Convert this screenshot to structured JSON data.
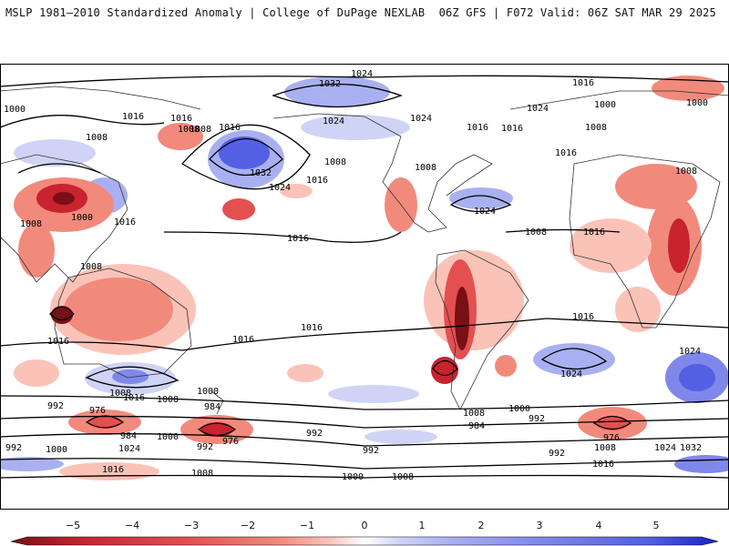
{
  "header": {
    "title_left": "MSLP 1981–2010 Standardized Anomaly | College of DuPage NEXLAB",
    "title_right": "06Z GFS | F072 Valid: 06Z SAT MAR 29 2025"
  },
  "colors": {
    "neg5": "#7a0f16",
    "neg4": "#c8232e",
    "neg3": "#e3504f",
    "neg2": "#f28a7c",
    "neg1": "#fbc3b8",
    "zero": "#ffffff",
    "pos1": "#cfd4f6",
    "pos2": "#a9b0f1",
    "pos3": "#7f88ea",
    "pos4": "#5460e3",
    "pos5": "#1a23c6",
    "land_outline": "#333333",
    "isobar": "#000000"
  },
  "colorbar": {
    "ticks": [
      "−5",
      "−4",
      "−3",
      "−2",
      "−1",
      "0",
      "1",
      "2",
      "3",
      "4",
      "5"
    ]
  },
  "isobar_labels": {
    "l1": "1024",
    "l2": "1032",
    "l3": "1016",
    "l4": "1000",
    "l5": "1016",
    "l6": "1008",
    "l7": "1016",
    "l8": "1024",
    "l9": "1008",
    "l10": "1016",
    "l11": "1024",
    "l12": "1016",
    "l13": "1000",
    "l14": "1024",
    "l15": "1016",
    "l16": "1008",
    "l17": "1000",
    "l18": "1016",
    "l19": "1032",
    "l20": "1024",
    "l21": "1008",
    "l22": "1016",
    "l23": "1008",
    "l24": "1008",
    "l25": "1008",
    "l26": "1024",
    "l27": "1008",
    "l28": "1016",
    "l29": "1016",
    "l30": "1008",
    "l31": "1016",
    "l32": "1008",
    "l33": "1016",
    "l34": "1016",
    "l35": "1024",
    "l36": "1024",
    "l37": "1016",
    "l38": "1016",
    "l39": "1016",
    "l40": "1008",
    "l41": "1000",
    "l42": "992",
    "l43": "976",
    "l44": "984",
    "l45": "992",
    "l46": "984",
    "l47": "1024",
    "l48": "1000",
    "l49": "992",
    "l50": "976",
    "l51": "1016",
    "l52": "1008",
    "l53": "1000",
    "l54": "1008",
    "l55": "992",
    "l56": "992",
    "l57": "984",
    "l58": "1000",
    "l59": "992",
    "l60": "976",
    "l61": "992",
    "l62": "1008",
    "l63": "1024",
    "l64": "1032",
    "l65": "1016",
    "l66": "1000",
    "l67": "1008",
    "l68": "1000",
    "l69": "1008"
  }
}
